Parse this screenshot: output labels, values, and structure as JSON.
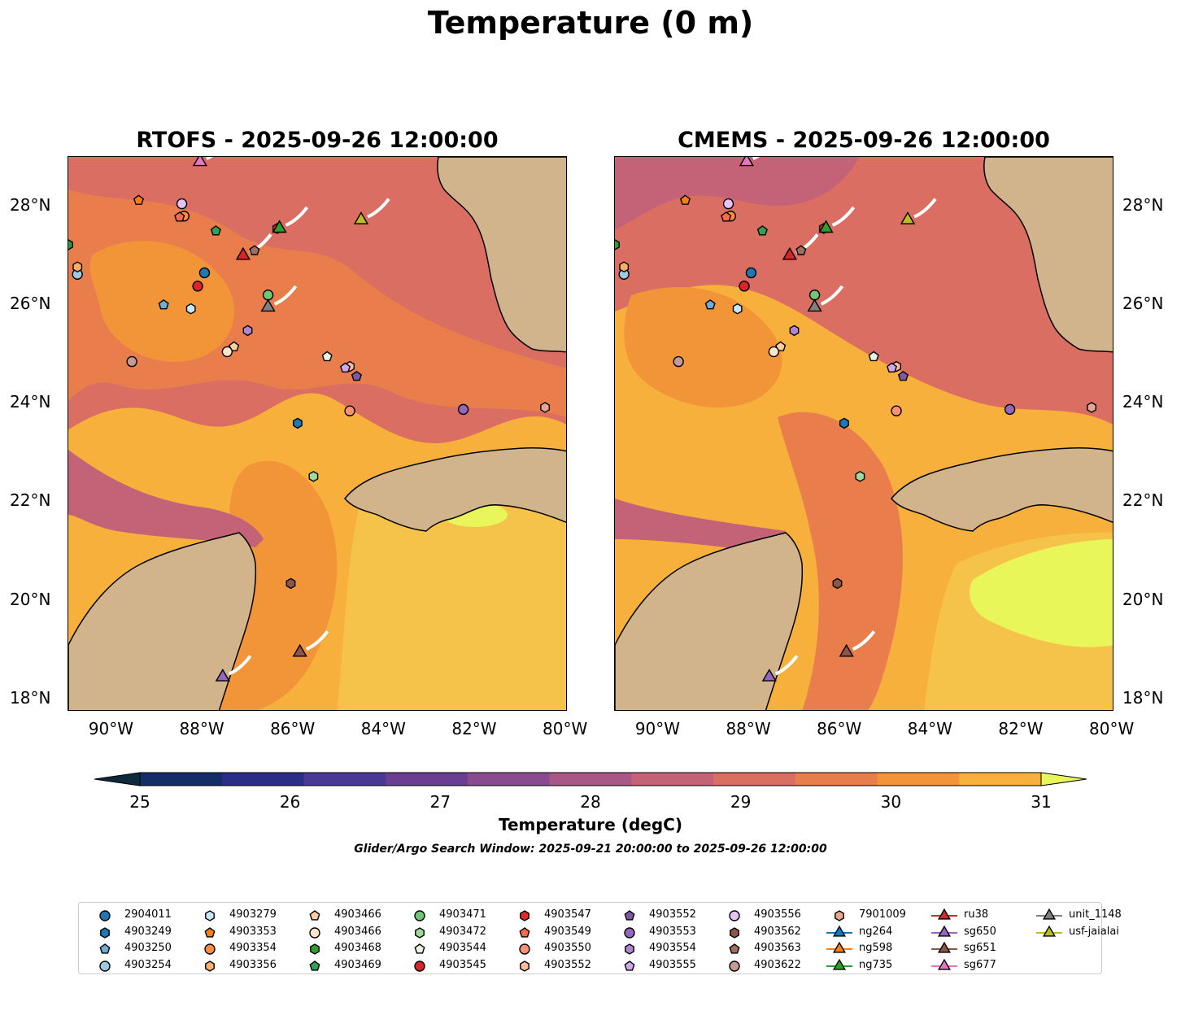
{
  "title": "Temperature (0 m)",
  "panels": [
    {
      "title": "RTOFS - 2025-09-26 12:00:00"
    },
    {
      "title": "CMEMS - 2025-09-26 12:00:00"
    }
  ],
  "axes": {
    "lon_ticks": [
      "90°W",
      "88°W",
      "86°W",
      "84°W",
      "82°W",
      "80°W"
    ],
    "lat_ticks": [
      "28°N",
      "26°N",
      "24°N",
      "22°N",
      "20°N",
      "18°N"
    ],
    "lon_range": [
      -91,
      -80
    ],
    "lat_range": [
      17.75,
      29
    ]
  },
  "colorbar": {
    "label": "Temperature (degC)",
    "ticks": [
      "25",
      "26",
      "27",
      "28",
      "29",
      "30",
      "31"
    ],
    "min": 25,
    "max": 31,
    "step": 0.5,
    "colors": [
      "#0d2a3d",
      "#132d67",
      "#2a2f86",
      "#4a3895",
      "#6a3f93",
      "#8a4a8f",
      "#a85786",
      "#c46377",
      "#da6e63",
      "#e97e4c",
      "#f29438",
      "#f7b03b",
      "#e9f65a"
    ]
  },
  "search_window": "Glider/Argo Search Window: 2025-09-21 20:00:00 to 2025-09-26 12:00:00",
  "legend": [
    {
      "label": "2904011",
      "marker": "circle",
      "color": "#1f77b4"
    },
    {
      "label": "4903249",
      "marker": "hexagon",
      "color": "#1f77b4"
    },
    {
      "label": "4903250",
      "marker": "pentagon",
      "color": "#6baed6"
    },
    {
      "label": "4903254",
      "marker": "circle",
      "color": "#9ecae1"
    },
    {
      "label": "4903279",
      "marker": "hexagon",
      "color": "#c6e8f7"
    },
    {
      "label": "4903353",
      "marker": "pentagon",
      "color": "#ff7f0e"
    },
    {
      "label": "4903354",
      "marker": "circle",
      "color": "#fd8d3c"
    },
    {
      "label": "4903356",
      "marker": "hexagon",
      "color": "#fdae6b"
    },
    {
      "label": "4903466",
      "marker": "pentagon",
      "color": "#fdd0a2"
    },
    {
      "label": "4903466",
      "marker": "circle",
      "color": "#fee6ce"
    },
    {
      "label": "4903468",
      "marker": "hexagon",
      "color": "#2ca02c"
    },
    {
      "label": "4903469",
      "marker": "pentagon",
      "color": "#31a354"
    },
    {
      "label": "4903471",
      "marker": "circle",
      "color": "#74c476"
    },
    {
      "label": "4903472",
      "marker": "hexagon",
      "color": "#a1d99b"
    },
    {
      "label": "4903544",
      "marker": "pentagon",
      "color": "#e5f5e0"
    },
    {
      "label": "4903545",
      "marker": "circle",
      "color": "#d62728"
    },
    {
      "label": "4903547",
      "marker": "hexagon",
      "color": "#de2d26"
    },
    {
      "label": "4903549",
      "marker": "pentagon",
      "color": "#fb6a4a"
    },
    {
      "label": "4903550",
      "marker": "circle",
      "color": "#fc9272"
    },
    {
      "label": "4903552",
      "marker": "hexagon",
      "color": "#fcbba1"
    },
    {
      "label": "4903552",
      "marker": "pentagon",
      "color": "#7e57a6"
    },
    {
      "label": "4903553",
      "marker": "circle",
      "color": "#9467bd"
    },
    {
      "label": "4903554",
      "marker": "hexagon",
      "color": "#b086d0"
    },
    {
      "label": "4903555",
      "marker": "pentagon",
      "color": "#d0a8ef"
    },
    {
      "label": "4903556",
      "marker": "circle",
      "color": "#e5c3f7"
    },
    {
      "label": "4903562",
      "marker": "hexagon",
      "color": "#8c564b"
    },
    {
      "label": "4903563",
      "marker": "pentagon",
      "color": "#a0705f"
    },
    {
      "label": "4903622",
      "marker": "circle",
      "color": "#c49c94"
    },
    {
      "label": "7901009",
      "marker": "hexagon",
      "color": "#e7a690"
    },
    {
      "label": "ng264",
      "marker": "triangle",
      "color": "#1f77b4"
    },
    {
      "label": "ng598",
      "marker": "triangle",
      "color": "#ff7f0e"
    },
    {
      "label": "ng735",
      "marker": "triangle",
      "color": "#2ca02c"
    },
    {
      "label": "ru38",
      "marker": "triangle",
      "color": "#d62728"
    },
    {
      "label": "sg650",
      "marker": "triangle",
      "color": "#9467bd"
    },
    {
      "label": "sg651",
      "marker": "triangle",
      "color": "#8c564b"
    },
    {
      "label": "sg677",
      "marker": "triangle",
      "color": "#e377c2"
    },
    {
      "label": "unit_1148",
      "marker": "triangle",
      "color": "#7f7f7f"
    },
    {
      "label": "usf-jaialai",
      "marker": "triangle",
      "color": "#bcbd22"
    }
  ],
  "argo_floats": [
    {
      "id": "2904011",
      "lon": -88.0,
      "lat": 26.65
    },
    {
      "id": "4903249",
      "lon": -85.95,
      "lat": 23.6
    },
    {
      "id": "4903250",
      "lon": -88.9,
      "lat": 26.0
    },
    {
      "id": "4903254",
      "lon": -90.8,
      "lat": 26.62
    },
    {
      "id": "4903279",
      "lon": -88.3,
      "lat": 25.92
    },
    {
      "id": "4903353",
      "lon": -89.45,
      "lat": 28.12
    },
    {
      "id": "4903354",
      "lon": -88.45,
      "lat": 27.8
    },
    {
      "id": "4903356",
      "lon": -90.8,
      "lat": 26.77
    },
    {
      "id": "4903466",
      "lon": -87.35,
      "lat": 25.15
    },
    {
      "id": "4903466",
      "lon": -87.5,
      "lat": 25.05
    },
    {
      "id": "4903468",
      "lon": -91.0,
      "lat": 27.22
    },
    {
      "id": "4903469",
      "lon": -87.75,
      "lat": 27.5
    },
    {
      "id": "4903471",
      "lon": -86.6,
      "lat": 26.2
    },
    {
      "id": "4903472",
      "lon": -85.6,
      "lat": 22.52
    },
    {
      "id": "4903544",
      "lon": -85.3,
      "lat": 24.95
    },
    {
      "id": "4903545",
      "lon": -88.15,
      "lat": 26.38
    },
    {
      "id": "4903547",
      "lon": -86.4,
      "lat": 27.55
    },
    {
      "id": "4903549",
      "lon": -88.55,
      "lat": 27.78
    },
    {
      "id": "4903550",
      "lon": -84.8,
      "lat": 23.85
    },
    {
      "id": "4903552",
      "lon": -84.8,
      "lat": 24.75
    },
    {
      "id": "4903552",
      "lon": -84.65,
      "lat": 24.55
    },
    {
      "id": "4903553",
      "lon": -82.3,
      "lat": 23.88
    },
    {
      "id": "4903554",
      "lon": -87.05,
      "lat": 25.48
    },
    {
      "id": "4903555",
      "lon": -84.9,
      "lat": 24.72
    },
    {
      "id": "4903556",
      "lon": -88.5,
      "lat": 28.05
    },
    {
      "id": "4903562",
      "lon": -86.1,
      "lat": 20.35
    },
    {
      "id": "4903563",
      "lon": -86.9,
      "lat": 27.1
    },
    {
      "id": "4903622",
      "lon": -89.6,
      "lat": 24.85
    },
    {
      "id": "7901009",
      "lon": -80.5,
      "lat": 23.92
    }
  ],
  "gliders": [
    {
      "id": "ru38",
      "lon": -87.15,
      "lat": 27.0
    },
    {
      "id": "sg650",
      "lon": -87.6,
      "lat": 18.45
    },
    {
      "id": "sg651",
      "lon": -85.9,
      "lat": 18.95
    },
    {
      "id": "sg677",
      "lon": -88.1,
      "lat": 28.9
    },
    {
      "id": "unit_1148",
      "lon": -86.6,
      "lat": 25.95
    },
    {
      "id": "usf-jaialai",
      "lon": -84.55,
      "lat": 27.72
    },
    {
      "id": "ng735",
      "lon": -86.35,
      "lat": 27.55
    }
  ]
}
